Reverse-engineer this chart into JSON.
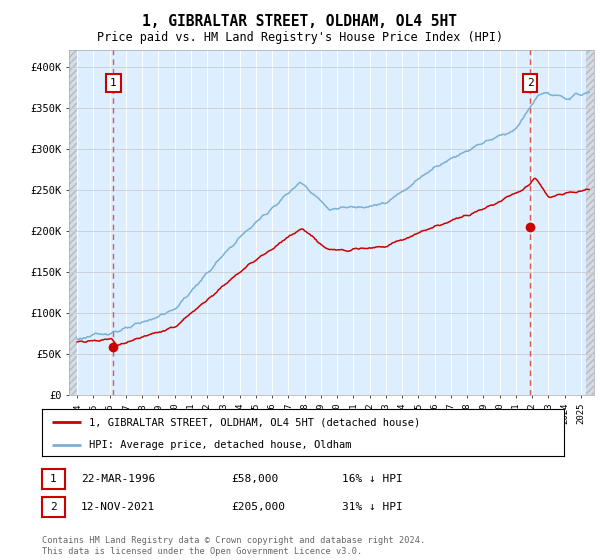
{
  "title": "1, GIBRALTAR STREET, OLDHAM, OL4 5HT",
  "subtitle": "Price paid vs. HM Land Registry's House Price Index (HPI)",
  "ylim": [
    0,
    420000
  ],
  "yticks": [
    0,
    50000,
    100000,
    150000,
    200000,
    250000,
    300000,
    350000,
    400000
  ],
  "ytick_labels": [
    "£0",
    "£50K",
    "£100K",
    "£150K",
    "£200K",
    "£250K",
    "£300K",
    "£350K",
    "£400K"
  ],
  "sale1_date": 1996.23,
  "sale1_price": 58000,
  "sale1_label": "1",
  "sale1_info": "22-MAR-1996",
  "sale1_amount": "£58,000",
  "sale1_hpi": "16% ↓ HPI",
  "sale2_date": 2021.87,
  "sale2_price": 205000,
  "sale2_label": "2",
  "sale2_info": "12-NOV-2021",
  "sale2_amount": "£205,000",
  "sale2_hpi": "31% ↓ HPI",
  "line_color_sale": "#cc0000",
  "line_color_hpi": "#7ab0d4",
  "dot_color": "#cc0000",
  "legend_label_sale": "1, GIBRALTAR STREET, OLDHAM, OL4 5HT (detached house)",
  "legend_label_hpi": "HPI: Average price, detached house, Oldham",
  "footer": "Contains HM Land Registry data © Crown copyright and database right 2024.\nThis data is licensed under the Open Government Licence v3.0.",
  "bg_plot": "#ddeeff",
  "xmin": 1993.5,
  "xmax": 2025.8,
  "data_start": 1994.0,
  "data_end": 2025.3
}
